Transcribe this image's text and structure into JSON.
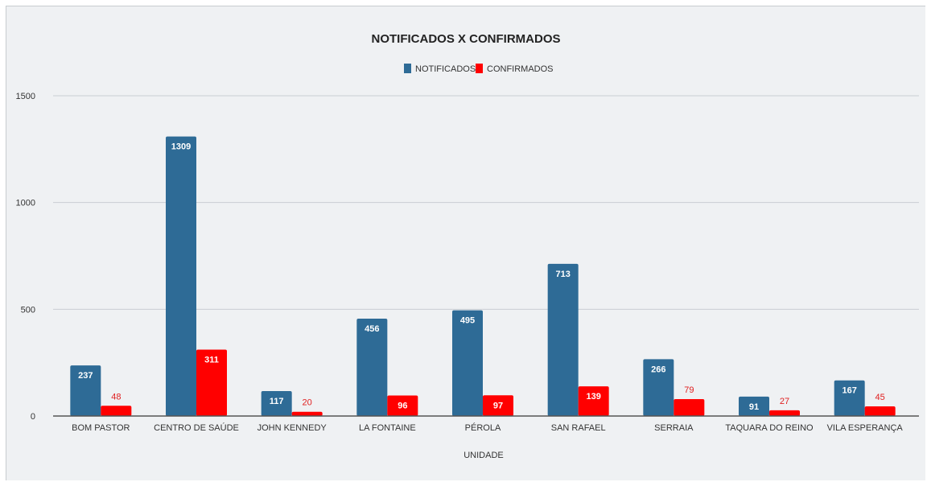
{
  "colors": {
    "notificados": "#2e6b96",
    "confirmados": "#ff0000",
    "grid": "#c9ced3",
    "axis": "#555555"
  },
  "chart_data": {
    "type": "bar",
    "title": "NOTIFICADOS X CONFIRMADOS",
    "xlabel": "UNIDADE",
    "ylabel": "",
    "ylim": [
      0,
      1500
    ],
    "yticks": [
      0,
      500,
      1000,
      1500
    ],
    "grid": true,
    "legend": "top-center",
    "categories": [
      "BOM PASTOR",
      "CENTRO DE SAÚDE",
      "JOHN KENNEDY",
      "LA FONTAINE",
      "PÉROLA",
      "SAN RAFAEL",
      "SERRAIA",
      "TAQUARA DO REINO",
      "VILA ESPERANÇA"
    ],
    "series": [
      {
        "name": "NOTIFICADOS",
        "values": [
          237,
          1309,
          117,
          456,
          495,
          713,
          266,
          91,
          167
        ]
      },
      {
        "name": "CONFIRMADOS",
        "values": [
          48,
          311,
          20,
          96,
          97,
          139,
          79,
          27,
          45
        ]
      }
    ]
  }
}
